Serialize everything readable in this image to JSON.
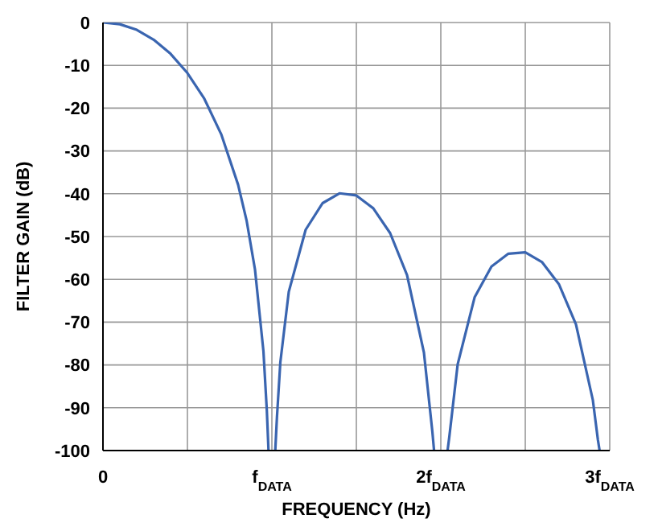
{
  "chart_data": {
    "type": "line",
    "xlabel": "FREQUENCY (Hz)",
    "ylabel": "FILTER GAIN (dB)",
    "x": [
      0,
      0.1,
      0.2,
      0.3,
      0.4,
      0.5,
      0.6,
      0.7,
      0.8,
      0.85,
      0.9,
      0.95,
      0.97,
      0.98,
      1.0,
      1.02,
      1.03,
      1.05,
      1.1,
      1.2,
      1.3,
      1.4,
      1.5,
      1.6,
      1.7,
      1.8,
      1.9,
      1.95,
      1.96,
      2.0,
      2.04,
      2.05,
      2.1,
      2.2,
      2.3,
      2.4,
      2.5,
      2.6,
      2.7,
      2.8,
      2.9,
      2.93,
      2.94
    ],
    "series": [
      {
        "color": "#3a65b0",
        "values": [
          0,
          -0.4,
          -1.7,
          -4,
          -7.3,
          -11.8,
          -17.8,
          -26.1,
          -37.9,
          -46.2,
          -57.7,
          -76.8,
          -90.6,
          -100,
          null,
          -100,
          -92.2,
          -79.4,
          -62.9,
          -48.4,
          -42.2,
          -39.9,
          -40.4,
          -43.4,
          -49.2,
          -59,
          -77.1,
          -95.6,
          -100,
          null,
          -100,
          -96.9,
          -79.8,
          -64.2,
          -57,
          -54,
          -53.7,
          -56,
          -61.2,
          -70.5,
          -88.2,
          -97.5,
          -100
        ]
      }
    ],
    "xlim": [
      0,
      3
    ],
    "xticks": [
      0,
      {
        "value": 0.5,
        "label": null
      },
      {
        "value": 1,
        "label": "f$_{DATA}$"
      },
      {
        "value": 1.5,
        "label": null
      },
      {
        "value": 2,
        "label": "2f$_{DATA}$"
      },
      {
        "value": 2.5,
        "label": null
      },
      {
        "value": 3,
        "label": "3f$_{DATA}$"
      }
    ],
    "ylim": [
      -100,
      0
    ],
    "yticks": [
      0,
      -10,
      -20,
      -30,
      -40,
      -50,
      -60,
      -70,
      -80,
      -90,
      -100
    ],
    "grid": true,
    "line_style": "solid"
  }
}
